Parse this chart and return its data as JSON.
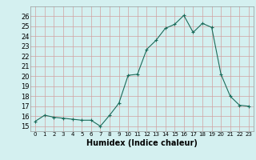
{
  "x": [
    0,
    1,
    2,
    3,
    4,
    5,
    6,
    7,
    8,
    9,
    10,
    11,
    12,
    13,
    14,
    15,
    16,
    17,
    18,
    19,
    20,
    21,
    22,
    23
  ],
  "y": [
    15.5,
    16.1,
    15.9,
    15.8,
    15.7,
    15.6,
    15.6,
    15.0,
    16.1,
    17.3,
    20.1,
    20.2,
    22.7,
    23.6,
    24.8,
    25.2,
    26.1,
    24.4,
    25.3,
    24.9,
    20.2,
    18.0,
    17.1,
    17.0
  ],
  "xlabel": "Humidex (Indice chaleur)",
  "ylim": [
    14.5,
    27
  ],
  "xlim": [
    -0.5,
    23.5
  ],
  "line_color": "#1a6b5a",
  "marker": "+",
  "bg_color": "#d4f0f0",
  "grid_color": "#c8e8e8",
  "tick_labels": [
    "0",
    "1",
    "2",
    "3",
    "4",
    "5",
    "6",
    "7",
    "8",
    "9",
    "10",
    "11",
    "12",
    "13",
    "14",
    "15",
    "16",
    "17",
    "18",
    "19",
    "20",
    "21",
    "22",
    "23"
  ],
  "yticks": [
    15,
    16,
    17,
    18,
    19,
    20,
    21,
    22,
    23,
    24,
    25,
    26
  ],
  "xlabel_fontsize": 7,
  "xtick_fontsize": 5,
  "ytick_fontsize": 6
}
